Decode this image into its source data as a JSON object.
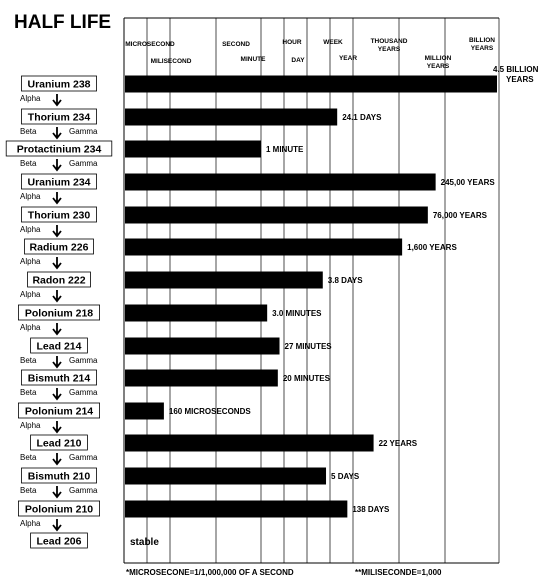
{
  "chart_data": {
    "type": "bar",
    "orientation": "horizontal",
    "title": "HALF LIFE",
    "scale": "log",
    "x_ticks": [
      "MICROSECOND",
      "MILISECOND",
      "SECOND",
      "MINUTE",
      "HOUR",
      "DAY",
      "WEEK",
      "YEAR",
      "THOUSAND YEARS",
      "MILLION YEARS",
      "BILLION YEARS"
    ],
    "categories": [
      "Uranium 238",
      "Thorium 234",
      "Protactinium 234",
      "Uranium 234",
      "Thorium 230",
      "Radium 226",
      "Radon 222",
      "Polonium 218",
      "Lead 214",
      "Bismuth 214",
      "Polonium 214",
      "Lead 210",
      "Bismuth 210",
      "Polonium 210",
      "Lead 206"
    ],
    "decay": [
      "Alpha",
      "Beta Gamma",
      "Beta Gamma",
      "Alpha",
      "Alpha",
      "Alpha",
      "Alpha",
      "Alpha",
      "Beta Gamma",
      "Beta Gamma",
      "Alpha",
      "Beta Gamma",
      "Beta Gamma",
      "Alpha",
      ""
    ],
    "value_labels": [
      "4.5 BILLION YEARS",
      "24.1 DAYS",
      "1 MINUTE",
      "245,00 YEARS",
      "76,000 YEARS",
      "1,600 YEARS",
      "3.8 DAYS",
      "3.0 MINUTES",
      "27 MINUTES",
      "20 MINUTES",
      "160 MICROSECONDS",
      "22 YEARS",
      "5 DAYS",
      "138 DAYS",
      "stable"
    ],
    "values_seconds": [
      1.42e+17,
      2082240,
      60,
      7730000000000.0,
      2400000000000.0,
      50500000000.0,
      328320,
      180,
      1620,
      1200,
      0.00016,
      694000000.0,
      432000,
      11923200,
      null
    ],
    "footnotes": [
      "*MICROSECONE=1/1,000,000 OF A SECOND",
      "**MILISECONDE=1,000"
    ]
  }
}
